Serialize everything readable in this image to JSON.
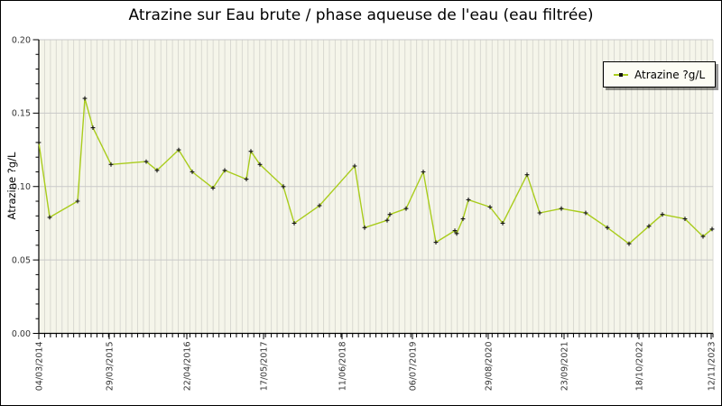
{
  "colors": {
    "line": "#a9cc1c",
    "marker": "#141414",
    "plot_bg": "#f5f5ea",
    "stripe": "#d9d9d1",
    "hgrid": "#c9c9c9",
    "axis": "#000000",
    "tick_text": "#333333",
    "legend_bg": "#fcfcf4"
  },
  "chart_data": {
    "type": "line",
    "title": "Atrazine sur Eau brute / phase aqueuse de l'eau (eau filtrée)",
    "ylabel": "Atrazine ?g/L",
    "xlabel": "",
    "legend_label": "Atrazine ?g/L",
    "legend_position": "top-right inside",
    "ylim": [
      0.0,
      0.2
    ],
    "grid": {
      "horizontal": "major ticks 0.05",
      "vertical": "monthly stripes"
    },
    "y_ticks": [
      {
        "value": 0.0,
        "label": "0.00"
      },
      {
        "value": 0.05,
        "label": "0.05"
      },
      {
        "value": 0.1,
        "label": "0.10"
      },
      {
        "value": 0.15,
        "label": "0.15"
      },
      {
        "value": 0.2,
        "label": "0.20"
      }
    ],
    "x_ticks": [
      {
        "px": 42,
        "label": "04/03/2014"
      },
      {
        "px": 120,
        "label": "29/03/2015"
      },
      {
        "px": 206,
        "label": "22/04/2016"
      },
      {
        "px": 291,
        "label": "17/05/2017"
      },
      {
        "px": 378,
        "label": "11/06/2018"
      },
      {
        "px": 456,
        "label": "06/07/2019"
      },
      {
        "px": 540,
        "label": "29/08/2020"
      },
      {
        "px": 624,
        "label": "23/09/2021"
      },
      {
        "px": 707,
        "label": "18/10/2022"
      },
      {
        "px": 787,
        "label": "12/11/2023"
      }
    ],
    "series": [
      {
        "name": "Atrazine ?g/L",
        "color": "#a9cc1c",
        "marker": "plus",
        "marker_color": "#141414",
        "points": [
          {
            "px": 42,
            "value": 0.13
          },
          {
            "px": 54,
            "value": 0.079
          },
          {
            "px": 85,
            "value": 0.09
          },
          {
            "px": 93,
            "value": 0.16
          },
          {
            "px": 102,
            "value": 0.14
          },
          {
            "px": 122,
            "value": 0.115
          },
          {
            "px": 161,
            "value": 0.117
          },
          {
            "px": 173,
            "value": 0.111
          },
          {
            "px": 197,
            "value": 0.125
          },
          {
            "px": 212,
            "value": 0.11
          },
          {
            "px": 235,
            "value": 0.099
          },
          {
            "px": 248,
            "value": 0.111
          },
          {
            "px": 272,
            "value": 0.105
          },
          {
            "px": 277,
            "value": 0.124
          },
          {
            "px": 287,
            "value": 0.115
          },
          {
            "px": 313,
            "value": 0.1
          },
          {
            "px": 325,
            "value": 0.075
          },
          {
            "px": 353,
            "value": 0.087
          },
          {
            "px": 392,
            "value": 0.114
          },
          {
            "px": 403,
            "value": 0.072
          },
          {
            "px": 428,
            "value": 0.077
          },
          {
            "px": 431,
            "value": 0.081
          },
          {
            "px": 449,
            "value": 0.085
          },
          {
            "px": 468,
            "value": 0.11
          },
          {
            "px": 482,
            "value": 0.062
          },
          {
            "px": 503,
            "value": 0.07
          },
          {
            "px": 505,
            "value": 0.068
          },
          {
            "px": 512,
            "value": 0.078
          },
          {
            "px": 518,
            "value": 0.091
          },
          {
            "px": 542,
            "value": 0.086
          },
          {
            "px": 556,
            "value": 0.075
          },
          {
            "px": 583,
            "value": 0.108
          },
          {
            "px": 597,
            "value": 0.082
          },
          {
            "px": 621,
            "value": 0.085
          },
          {
            "px": 648,
            "value": 0.082
          },
          {
            "px": 672,
            "value": 0.072
          },
          {
            "px": 696,
            "value": 0.061
          },
          {
            "px": 718,
            "value": 0.073
          },
          {
            "px": 733,
            "value": 0.081
          },
          {
            "px": 758,
            "value": 0.078
          },
          {
            "px": 778,
            "value": 0.066
          },
          {
            "px": 788,
            "value": 0.071
          }
        ]
      }
    ]
  }
}
